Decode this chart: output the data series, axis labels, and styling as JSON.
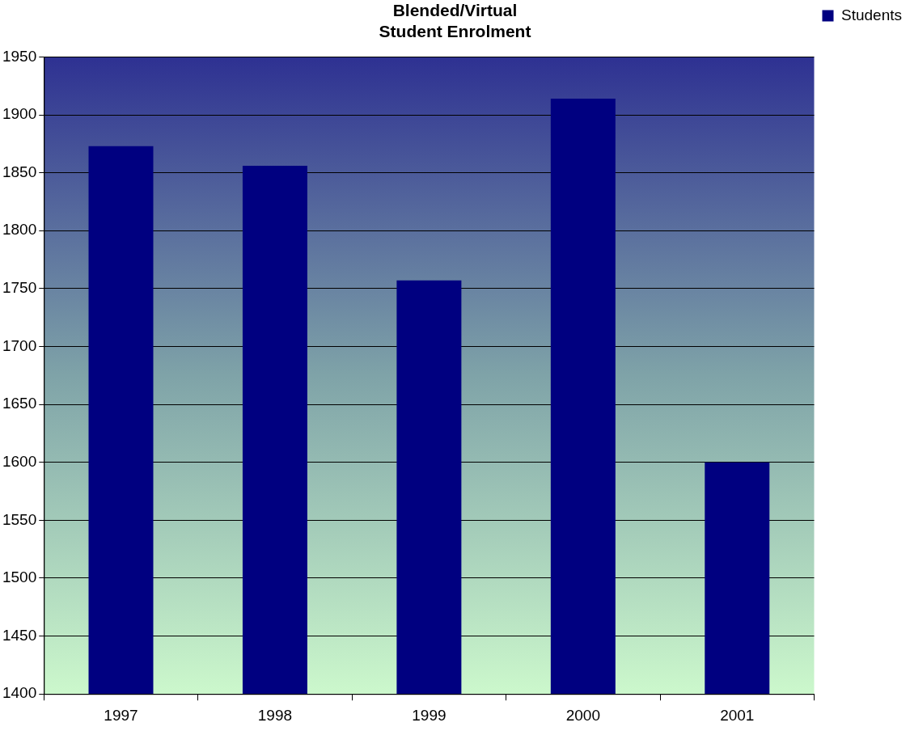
{
  "chart_data": {
    "type": "bar",
    "title": "Blended/Virtual\nStudent Enrolment",
    "categories": [
      "1997",
      "1998",
      "1999",
      "2000",
      "2001"
    ],
    "series": [
      {
        "name": "Students",
        "color": "#000080",
        "values": [
          1873,
          1856,
          1757,
          1914,
          1600
        ]
      }
    ],
    "ylim": [
      1400,
      1950
    ],
    "yticks": [
      1400,
      1450,
      1500,
      1550,
      1600,
      1650,
      1700,
      1750,
      1800,
      1850,
      1900,
      1950
    ],
    "grid": "y",
    "legend": "top right"
  }
}
